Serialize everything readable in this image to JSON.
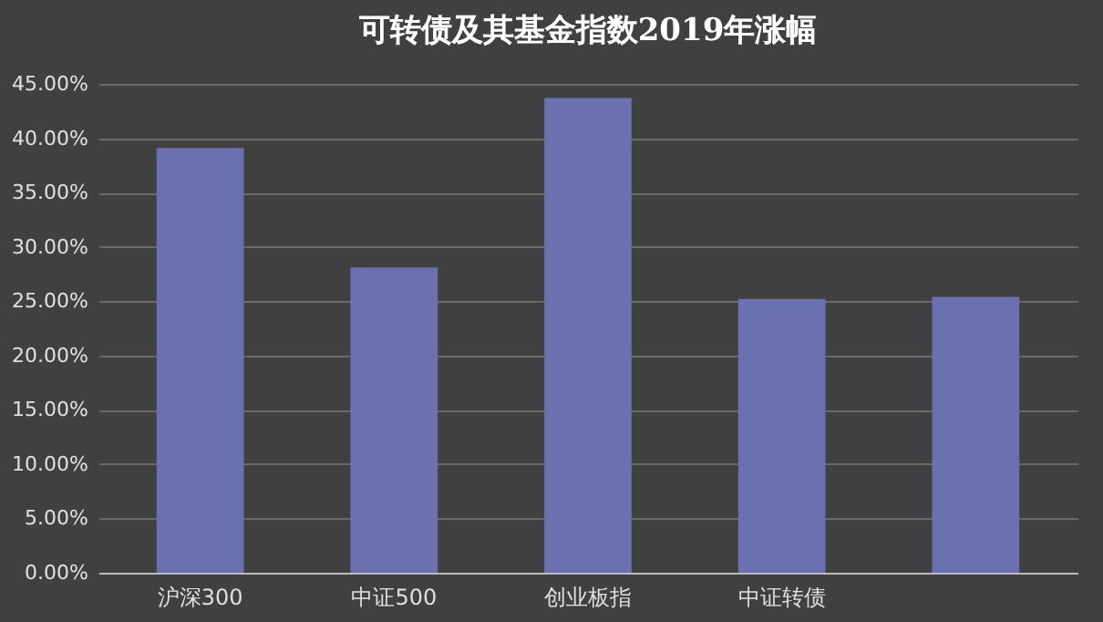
{
  "chart_data": {
    "type": "bar",
    "title": "可转债及其基金指数2019年涨幅",
    "categories": [
      "沪深300",
      "中证500",
      "创业板指",
      "中证转债",
      null
    ],
    "values": [
      39.1,
      28.1,
      43.7,
      25.2,
      25.4
    ],
    "color": "#6a70b0",
    "ylim": [
      0,
      45
    ],
    "yticks": [
      {
        "value": 0,
        "label": "0.00%"
      },
      {
        "value": 5,
        "label": "5.00%"
      },
      {
        "value": 10,
        "label": "10.00%"
      },
      {
        "value": 15,
        "label": "15.00%"
      },
      {
        "value": 20,
        "label": "20.00%"
      },
      {
        "value": 25,
        "label": "25.00%"
      },
      {
        "value": 30,
        "label": "30.00%"
      },
      {
        "value": 35,
        "label": "35.00%"
      },
      {
        "value": 40,
        "label": "40.00%"
      },
      {
        "value": 45,
        "label": "45.00%"
      }
    ],
    "grid": true
  }
}
